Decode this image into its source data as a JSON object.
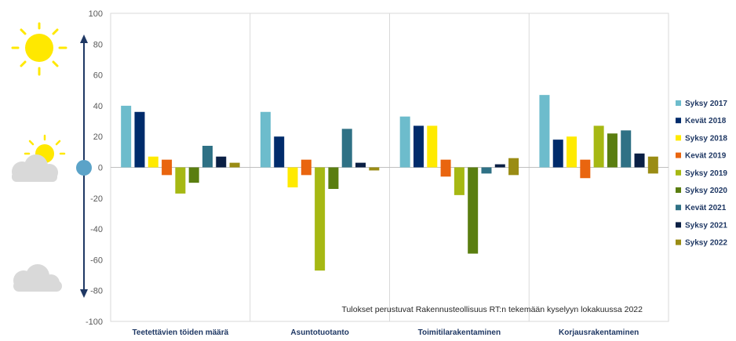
{
  "chart_data": {
    "type": "bar",
    "categories": [
      "Teetettävien töiden määrä",
      "Asuntotuotanto",
      "Toimitilarakentaminen",
      "Korjausrakentaminen"
    ],
    "series": [
      {
        "name": "Syksy 2017",
        "color": "#6dbccc",
        "values": [
          40,
          36,
          33,
          47
        ]
      },
      {
        "name": "Kevät 2018",
        "color": "#002b6b",
        "values": [
          36,
          20,
          27,
          18
        ]
      },
      {
        "name": "Syksy 2018",
        "color": "#ffea00",
        "values": [
          7,
          -13,
          27,
          20
        ]
      },
      {
        "name": "Kevät 2019",
        "color": "#e9650f",
        "values": [
          5,
          5,
          5,
          5
        ]
      },
      {
        "name": "Kevät 2019 (negatiivinen)",
        "color": "#e9650f",
        "values": [
          -5,
          -5,
          -6,
          -7
        ]
      },
      {
        "name": "Syksy 2019",
        "color": "#a6b813",
        "values": [
          -17,
          -67,
          -18,
          27
        ]
      },
      {
        "name": "Syksy 2020",
        "color": "#5a7e10",
        "values": [
          -10,
          -14,
          -56,
          22
        ]
      },
      {
        "name": "Kevät 2021",
        "color": "#2f7185",
        "values": [
          14,
          25,
          -4,
          24
        ]
      },
      {
        "name": "Syksy 2021",
        "color": "#0a1f44",
        "values": [
          7,
          3,
          2,
          9
        ]
      },
      {
        "name": "Syksy 2022",
        "color": "#9a8c14",
        "values": [
          3,
          -2,
          6,
          7
        ]
      },
      {
        "name": "Syksy 2022 (negatiivinen)",
        "color": "#9a8c14",
        "values": [
          0,
          0,
          -5,
          -4
        ]
      }
    ],
    "legend": [
      "Syksy 2017",
      "Kevät 2018",
      "Syksy 2018",
      "Kevät 2019",
      "Syksy 2019",
      "Syksy 2020",
      "Kevät 2021",
      "Syksy 2021",
      "Syksy 2022"
    ],
    "legend_colors": [
      "#6dbccc",
      "#002b6b",
      "#ffea00",
      "#e9650f",
      "#a6b813",
      "#5a7e10",
      "#2f7185",
      "#0a1f44",
      "#9a8c14"
    ],
    "ylim": [
      -100,
      100
    ],
    "yticks": [
      100,
      80,
      60,
      40,
      20,
      0,
      -20,
      -40,
      -60,
      -80,
      -100
    ],
    "annotation": "Tulokset perustuvat Rakennusteollisuus RT:n tekemään kyselyyn lokakuussa 2022",
    "grid": "vertical separators between categories",
    "legend_position": "right",
    "xlabel": "",
    "ylabel": ""
  },
  "icons": {
    "top": "sun-icon",
    "middle": "sun-behind-cloud-icon",
    "bottom": "cloud-icon",
    "zero_marker": "circle-marker",
    "arrow": "double-arrow-icon"
  }
}
